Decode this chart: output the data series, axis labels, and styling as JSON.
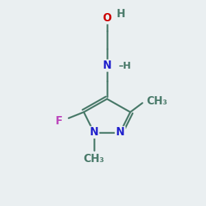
{
  "bg_color": "#eaeff1",
  "bond_color": "#4a7a6a",
  "bond_width": 1.8,
  "atom_colors": {
    "O": "#cc0000",
    "N": "#2020cc",
    "F": "#bb44bb",
    "C": "#4a7a6a"
  },
  "font_size": 11,
  "figsize": [
    3.0,
    3.0
  ],
  "dpi": 100,
  "xlim": [
    0,
    10
  ],
  "ylim": [
    0,
    10
  ]
}
